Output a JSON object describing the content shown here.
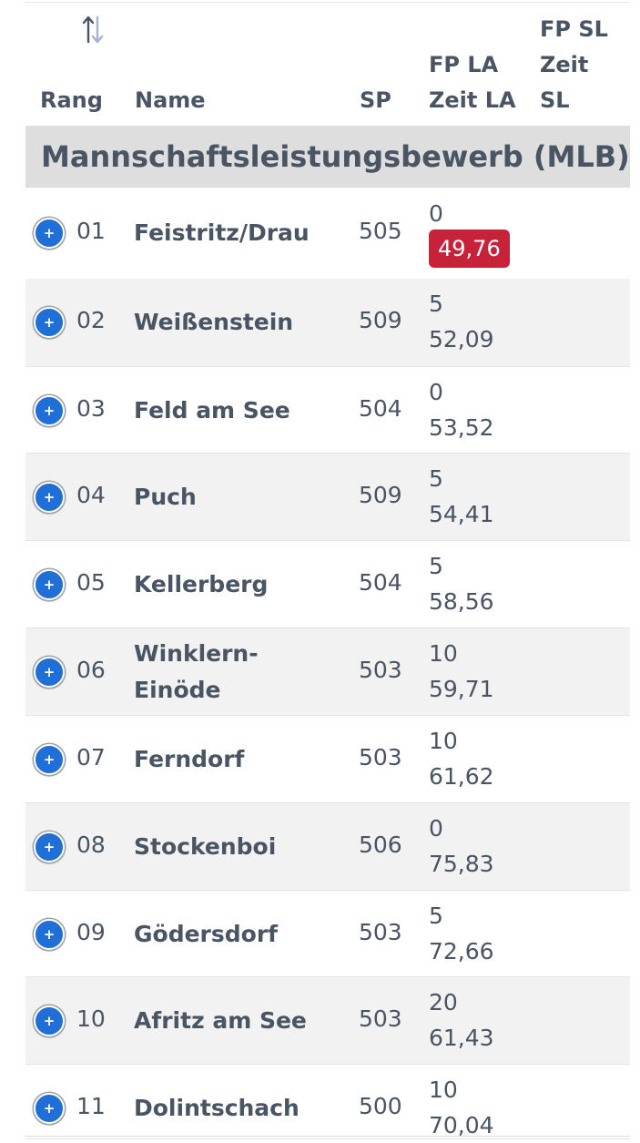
{
  "table": {
    "columns": {
      "rank": "Rang",
      "name": "Name",
      "sp": "SP",
      "fp_la_line1": "FP LA",
      "fp_la_line2": "Zeit LA",
      "fp_sl_line1": "FP SL",
      "fp_sl_line2": "Zeit",
      "fp_sl_line3": "SL"
    },
    "sort_icon": "sort-arrows-icon",
    "section_title": "Mannschaftsleistungsbewerb (MLB)",
    "expand_icon_glyph": "+",
    "rows": [
      {
        "rank": "01",
        "name_line1": "Feistritz/Drau",
        "name_line2": "",
        "sp": "505",
        "fp": "0",
        "time": "49,76",
        "highlight": true
      },
      {
        "rank": "02",
        "name_line1": "Weißenstein",
        "name_line2": "",
        "sp": "509",
        "fp": "5",
        "time": "52,09",
        "highlight": false
      },
      {
        "rank": "03",
        "name_line1": "Feld am See",
        "name_line2": "",
        "sp": "504",
        "fp": "0",
        "time": "53,52",
        "highlight": false
      },
      {
        "rank": "04",
        "name_line1": "Puch",
        "name_line2": "",
        "sp": "509",
        "fp": "5",
        "time": "54,41",
        "highlight": false
      },
      {
        "rank": "05",
        "name_line1": "Kellerberg",
        "name_line2": "",
        "sp": "504",
        "fp": "5",
        "time": "58,56",
        "highlight": false
      },
      {
        "rank": "06",
        "name_line1": "Winklern-",
        "name_line2": "Einöde",
        "sp": "503",
        "fp": "10",
        "time": "59,71",
        "highlight": false
      },
      {
        "rank": "07",
        "name_line1": "Ferndorf",
        "name_line2": "",
        "sp": "503",
        "fp": "10",
        "time": "61,62",
        "highlight": false
      },
      {
        "rank": "08",
        "name_line1": "Stockenboi",
        "name_line2": "",
        "sp": "506",
        "fp": "0",
        "time": "75,83",
        "highlight": false
      },
      {
        "rank": "09",
        "name_line1": "Gödersdorf",
        "name_line2": "",
        "sp": "503",
        "fp": "5",
        "time": "72,66",
        "highlight": false
      },
      {
        "rank": "10",
        "name_line1": "Afritz am See",
        "name_line2": "",
        "sp": "503",
        "fp": "20",
        "time": "61,43",
        "highlight": false
      },
      {
        "rank": "11",
        "name_line1": "Dolintschach",
        "name_line2": "",
        "sp": "500",
        "fp": "10",
        "time": "70,04",
        "highlight": false
      }
    ]
  },
  "colors": {
    "text": "#4a5563",
    "section_bg": "#dedede",
    "alt_row_bg": "#f2f2f2",
    "badge_bg": "#c8223a",
    "button_blue": "#1f6fd6"
  }
}
